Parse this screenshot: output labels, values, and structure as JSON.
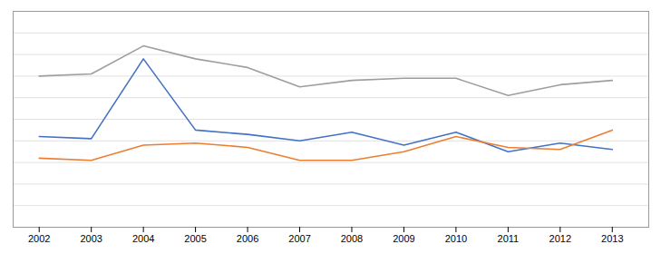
{
  "chart_data": {
    "type": "line",
    "x": [
      2002,
      2003,
      2004,
      2005,
      2006,
      2007,
      2008,
      2009,
      2010,
      2011,
      2012,
      2013
    ],
    "series": [
      {
        "color": "#9e9e9e",
        "values": [
          7.0,
          7.1,
          8.4,
          7.8,
          7.4,
          6.5,
          6.8,
          6.9,
          6.9,
          6.1,
          6.6,
          6.8
        ]
      },
      {
        "color": "#4472c4",
        "values": [
          4.2,
          4.1,
          7.8,
          4.5,
          4.3,
          4.0,
          4.4,
          3.8,
          4.4,
          3.5,
          3.9,
          3.6
        ]
      },
      {
        "color": "#ed7d31",
        "values": [
          3.2,
          3.1,
          3.8,
          3.9,
          3.7,
          3.1,
          3.1,
          3.5,
          4.2,
          3.7,
          3.6,
          4.5
        ]
      }
    ],
    "xlim": [
      2001.5,
      2013.7
    ],
    "ylim": [
      0,
      10
    ],
    "xticks": [
      2002,
      2003,
      2004,
      2005,
      2006,
      2007,
      2008,
      2009,
      2010,
      2011,
      2012,
      2013
    ],
    "yticks": [
      0,
      1,
      2,
      3,
      4,
      5,
      6,
      7,
      8,
      9,
      10
    ],
    "grid": true,
    "tick_labels": "x"
  }
}
